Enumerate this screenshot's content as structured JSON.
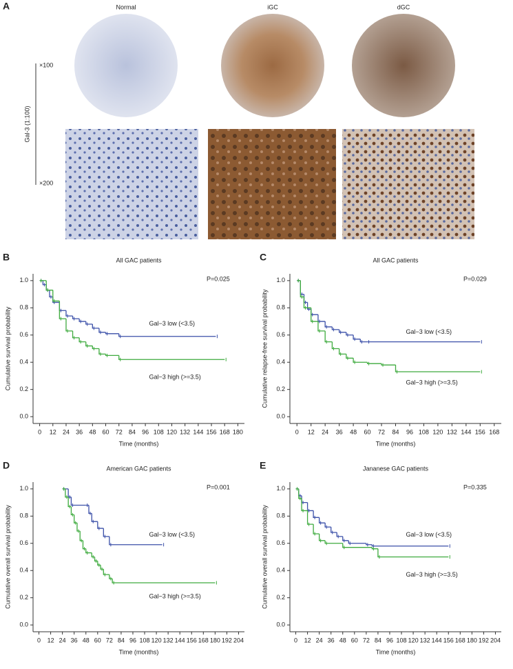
{
  "panel_a": {
    "label": "A",
    "columns": [
      "Normal",
      "iGC",
      "dGC"
    ],
    "stain": "Gal-3 (1:100)",
    "magnifications": [
      "×100",
      "×200"
    ]
  },
  "chart_data": [
    {
      "type": "step",
      "panel": "B",
      "title": "All GAC patients",
      "annotation": "P=0.025",
      "xlabel": "Time (months)",
      "ylabel": "Cumulative survival probability",
      "xlim": [
        -6,
        186
      ],
      "xticks": [
        0,
        12,
        24,
        36,
        48,
        60,
        72,
        84,
        96,
        108,
        120,
        132,
        144,
        156,
        168,
        180
      ],
      "ylim": [
        -0.05,
        1.05
      ],
      "yticks": [
        {
          "value": 0,
          "label": "0.0"
        },
        0.2,
        0.4,
        0.6,
        0.8,
        {
          "value": 1,
          "label": "1.0"
        }
      ],
      "series": [
        {
          "name": "Gal−3 low (<3.5)",
          "color": "#3a4fa8",
          "x": [
            0,
            3,
            6,
            9,
            12,
            18,
            24,
            30,
            36,
            42,
            48,
            54,
            60,
            72,
            160
          ],
          "values": [
            1.0,
            0.97,
            0.93,
            0.88,
            0.84,
            0.78,
            0.74,
            0.72,
            0.7,
            0.68,
            0.65,
            0.62,
            0.61,
            0.59,
            0.59
          ]
        },
        {
          "name": "Gal−3 high (>=3.5)",
          "color": "#3daa3d",
          "x": [
            0,
            6,
            12,
            18,
            24,
            30,
            36,
            42,
            48,
            54,
            60,
            72,
            168
          ],
          "values": [
            1.0,
            0.93,
            0.85,
            0.72,
            0.63,
            0.58,
            0.55,
            0.52,
            0.5,
            0.46,
            0.45,
            0.42,
            0.42
          ]
        }
      ]
    },
    {
      "type": "step",
      "panel": "C",
      "title": "All GAC patients",
      "annotation": "P=0.029",
      "xlabel": "Time (months)",
      "ylabel": "Cumulative relapse-free survival probability",
      "xlim": [
        -6,
        174
      ],
      "xticks": [
        0,
        12,
        24,
        36,
        48,
        60,
        72,
        84,
        96,
        108,
        120,
        132,
        144,
        156,
        168
      ],
      "ylim": [
        -0.05,
        1.05
      ],
      "yticks": [
        {
          "value": 0,
          "label": "0.0"
        },
        0.2,
        0.4,
        0.6,
        0.8,
        {
          "value": 1,
          "label": "1.0"
        }
      ],
      "series": [
        {
          "name": "Gal−3 low (<3.5)",
          "color": "#3a4fa8",
          "x": [
            0,
            3,
            6,
            9,
            12,
            18,
            24,
            30,
            36,
            42,
            48,
            54,
            60,
            156
          ],
          "values": [
            1.0,
            0.9,
            0.84,
            0.79,
            0.75,
            0.7,
            0.66,
            0.64,
            0.62,
            0.6,
            0.57,
            0.55,
            0.55,
            0.55
          ]
        },
        {
          "name": "Gal−3 high (>=3.5)",
          "color": "#3daa3d",
          "x": [
            0,
            3,
            6,
            12,
            18,
            24,
            30,
            36,
            42,
            48,
            60,
            72,
            84,
            156
          ],
          "values": [
            1.0,
            0.88,
            0.8,
            0.7,
            0.63,
            0.55,
            0.5,
            0.46,
            0.43,
            0.4,
            0.39,
            0.38,
            0.33,
            0.33
          ]
        }
      ]
    },
    {
      "type": "step",
      "panel": "D",
      "title": "American GAC patients",
      "annotation": "P=0.001",
      "xlabel": "Time (months)",
      "ylabel": "Cumulative overall survival probability",
      "xlim": [
        -6,
        210
      ],
      "xticks": [
        0,
        12,
        24,
        36,
        48,
        60,
        72,
        84,
        96,
        108,
        120,
        132,
        144,
        156,
        168,
        180,
        192,
        204
      ],
      "ylim": [
        -0.05,
        1.05
      ],
      "yticks": [
        {
          "value": 0,
          "label": "0.0"
        },
        0.2,
        0.4,
        0.6,
        0.8,
        {
          "value": 1,
          "label": "1.0"
        }
      ],
      "series": [
        {
          "name": "Gal−3 low (<3.5)",
          "color": "#3a4fa8",
          "x": [
            24,
            30,
            33,
            48,
            51,
            54,
            60,
            66,
            72,
            126
          ],
          "values": [
            1.0,
            0.94,
            0.88,
            0.88,
            0.82,
            0.76,
            0.71,
            0.65,
            0.59,
            0.59
          ]
        },
        {
          "name": "Gal−3 high (>=3.5)",
          "color": "#3daa3d",
          "x": [
            24,
            27,
            30,
            33,
            36,
            39,
            42,
            45,
            48,
            54,
            57,
            60,
            63,
            66,
            72,
            75,
            180
          ],
          "values": [
            1.0,
            0.94,
            0.87,
            0.81,
            0.75,
            0.69,
            0.62,
            0.56,
            0.53,
            0.5,
            0.47,
            0.44,
            0.41,
            0.37,
            0.34,
            0.31,
            0.31
          ]
        }
      ]
    },
    {
      "type": "step",
      "panel": "E",
      "title": "Jananese GAC patients",
      "annotation": "P=0.335",
      "xlabel": "Time (months)",
      "ylabel": "Cumulative overall survival probability",
      "xlim": [
        -6,
        210
      ],
      "xticks": [
        0,
        12,
        24,
        36,
        48,
        60,
        72,
        84,
        96,
        108,
        120,
        132,
        144,
        156,
        168,
        180,
        192,
        204
      ],
      "ylim": [
        -0.05,
        1.05
      ],
      "yticks": [
        {
          "value": 0,
          "label": "0.0"
        },
        0.2,
        0.4,
        0.6,
        0.8,
        {
          "value": 1,
          "label": "1.0"
        }
      ],
      "series": [
        {
          "name": "Gal−3 low (<3.5)",
          "color": "#3a4fa8",
          "x": [
            0,
            3,
            6,
            12,
            18,
            24,
            30,
            36,
            42,
            48,
            54,
            72,
            78,
            156
          ],
          "values": [
            1.0,
            0.95,
            0.9,
            0.84,
            0.79,
            0.75,
            0.72,
            0.68,
            0.65,
            0.62,
            0.6,
            0.59,
            0.58,
            0.58
          ]
        },
        {
          "name": "Gal−3 high (>=3.5)",
          "color": "#3daa3d",
          "x": [
            0,
            3,
            6,
            12,
            18,
            24,
            30,
            48,
            78,
            84,
            156
          ],
          "values": [
            1.0,
            0.93,
            0.84,
            0.74,
            0.67,
            0.62,
            0.6,
            0.57,
            0.56,
            0.5,
            0.5
          ]
        }
      ]
    }
  ]
}
